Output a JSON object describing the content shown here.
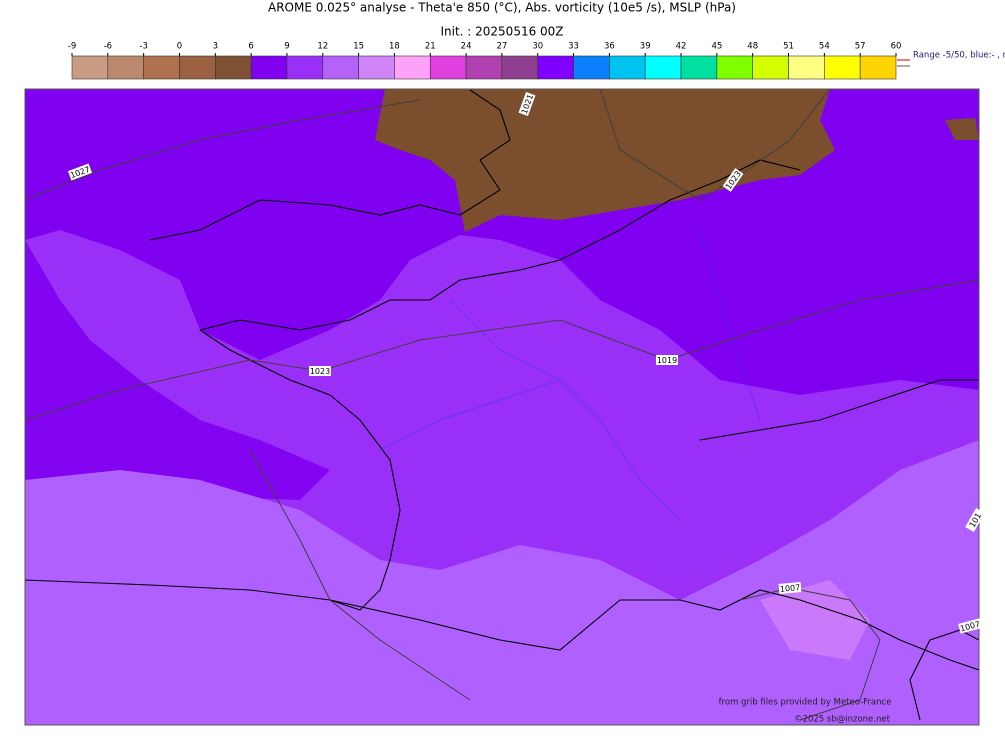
{
  "title": "AROME 0.025° analyse - Theta'e 850 (°C), Abs. vorticity (10e5 /s), MSLP (hPa)",
  "subtitle": "Init. : 20250516 00Z",
  "colorbar": {
    "ticks": [
      -9,
      -6,
      -3,
      0,
      3,
      6,
      9,
      12,
      15,
      18,
      21,
      24,
      27,
      30,
      33,
      36,
      39,
      42,
      45,
      48,
      51,
      54,
      57,
      60
    ],
    "colors": [
      "#c99c84",
      "#bb8a6c",
      "#b0714f",
      "#9a6040",
      "#7e5132",
      "#8000f0",
      "#9a30f8",
      "#b462f8",
      "#d184f8",
      "#ffa2f8",
      "#e040e0",
      "#b040b0",
      "#8f3f90",
      "#8000ff",
      "#0a80ff",
      "#00c4f0",
      "#00ffff",
      "#00e0a0",
      "#80ff00",
      "#d4ff00",
      "#ffff84",
      "#ffff00",
      "#ffd400"
    ]
  },
  "range_note": "Range -5/50, blue:- , r",
  "isobar_labels": [
    "1027",
    "1023",
    "1019",
    "1021",
    "1023",
    "1007",
    "1007",
    "101"
  ],
  "credits": [
    "from grib files provided by Meteo-France",
    "©2025 sb@inzone.net"
  ]
}
